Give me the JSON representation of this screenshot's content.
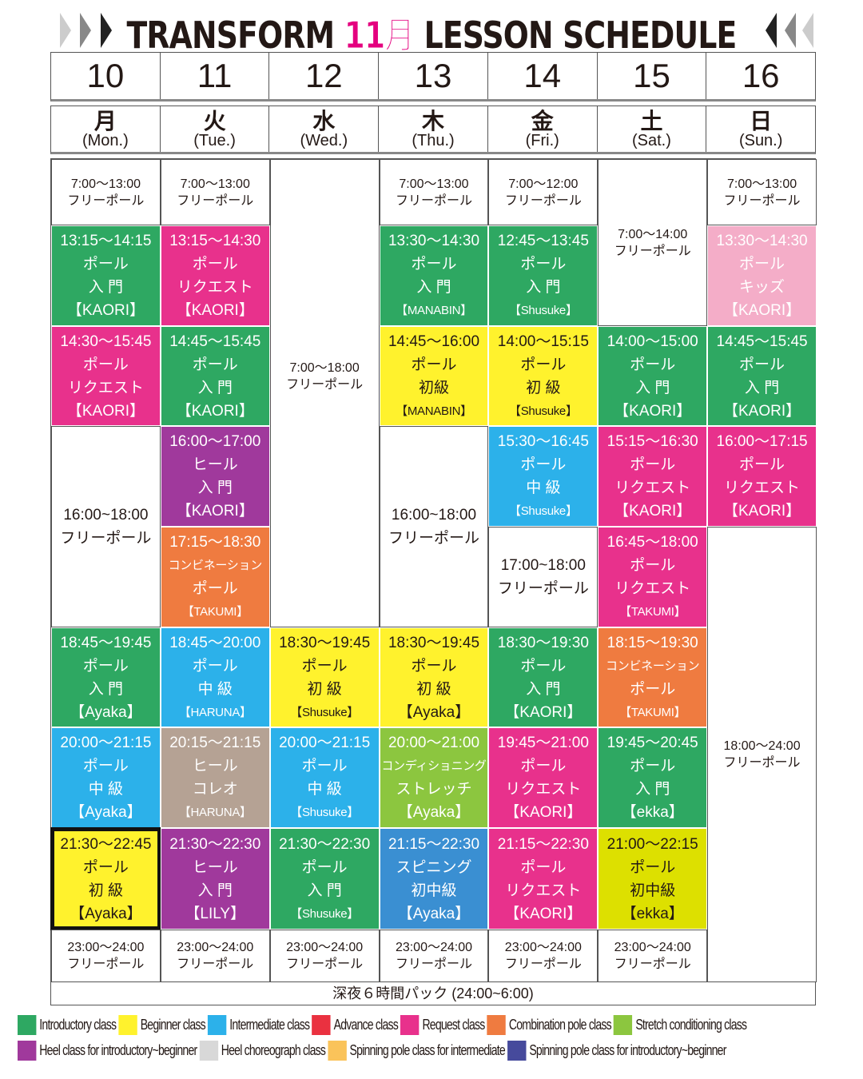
{
  "header": {
    "title_left": "TRANSFORM",
    "title_month": "11月",
    "title_right": "LESSON SCHEDULE"
  },
  "dates": [
    "10",
    "11",
    "12",
    "13",
    "14",
    "15",
    "16"
  ],
  "weekdays": [
    {
      "kanji": "月",
      "en": "(Mon.)"
    },
    {
      "kanji": "火",
      "en": "(Tue.)"
    },
    {
      "kanji": "水",
      "en": "(Wed.)"
    },
    {
      "kanji": "木",
      "en": "(Thu.)"
    },
    {
      "kanji": "金",
      "en": "(Fri.)"
    },
    {
      "kanji": "土",
      "en": "(Sat.)"
    },
    {
      "kanji": "日",
      "en": "(Sun.)"
    }
  ],
  "colors": {
    "green": "#2ea862",
    "yellow": "#fff22d",
    "cyan": "#2cb1ea",
    "red": "#ea3140",
    "pink": "#e8318c",
    "orange": "#ef7b40",
    "lime": "#8cc63f",
    "purple": "#a0399c",
    "taupe": "#b5a294",
    "gold": "#fac35a",
    "navy": "#464a9c",
    "lightpink": "#f4adc8",
    "yellowgreen": "#dde000",
    "blue": "#3a8fd2",
    "white": "#ffffff"
  },
  "columns": [
    {
      "cells": [
        {
          "type": "white",
          "lines": [
            "7:00〜13:00",
            "フリーポール"
          ]
        },
        {
          "type": "green",
          "lines": [
            "13:15〜14:15",
            "ポール",
            "入 門",
            "【KAORI】"
          ]
        },
        {
          "type": "pink",
          "lines": [
            "14:30〜15:45",
            "ポール",
            "リクエスト",
            "【KAORI】"
          ]
        },
        {
          "type": "white",
          "big": true,
          "lines": [
            "16:00~18:00",
            "フリーポール"
          ]
        },
        {
          "type": "green",
          "lines": [
            "18:45〜19:45",
            "ポール",
            "入 門",
            "【Ayaka】"
          ]
        },
        {
          "type": "cyan",
          "lines": [
            "20:00〜21:15",
            "ポール",
            "中 級",
            "【Ayaka】"
          ]
        },
        {
          "type": "yellow",
          "hl": true,
          "lines": [
            "21:30〜22:45",
            "ポール",
            "初 級",
            "【Ayaka】"
          ]
        },
        {
          "type": "white",
          "lines": [
            "23:00〜24:00",
            "フリーポール"
          ]
        }
      ]
    },
    {
      "cells": [
        {
          "type": "white",
          "lines": [
            "7:00〜13:00",
            "フリーポール"
          ]
        },
        {
          "type": "pink",
          "lines": [
            "13:15〜14:30",
            "ポール",
            "リクエスト",
            "【KAORI】"
          ]
        },
        {
          "type": "green",
          "lines": [
            "14:45〜15:45",
            "ポール",
            "入 門",
            "【KAORI】"
          ]
        },
        {
          "type": "purple",
          "lines": [
            "16:00〜17:00",
            "ヒール",
            "入 門",
            "【KAORI】"
          ]
        },
        {
          "type": "orange",
          "lines": [
            "17:15〜18:30",
            "コンビネーション",
            "ポール",
            "【TAKUMI】"
          ]
        },
        {
          "type": "cyan",
          "lines": [
            "18:45〜20:00",
            "ポール",
            "中 級",
            "【HARUNA】"
          ]
        },
        {
          "type": "taupe",
          "lines": [
            "20:15〜21:15",
            "ヒール",
            "コレオ",
            "【HARUNA】"
          ]
        },
        {
          "type": "purple",
          "lines": [
            "21:30〜22:30",
            "ヒール",
            "入 門",
            "【LILY】"
          ]
        },
        {
          "type": "white",
          "lines": [
            "23:00〜24:00",
            "フリーポール"
          ]
        }
      ]
    },
    {
      "cells": [
        {
          "type": "white",
          "lines": [
            "7:00〜18:00",
            "フリーポール"
          ]
        },
        {
          "type": "yellow",
          "lines": [
            "18:30〜19:45",
            "ポール",
            "初 級",
            "【Shusuke】"
          ]
        },
        {
          "type": "cyan",
          "lines": [
            "20:00〜21:15",
            "ポール",
            "中 級",
            "【Shusuke】"
          ]
        },
        {
          "type": "green",
          "lines": [
            "21:30〜22:30",
            "ポール",
            "入 門",
            "【Shusuke】"
          ]
        },
        {
          "type": "white",
          "lines": [
            "23:00〜24:00",
            "フリーポール"
          ]
        }
      ]
    },
    {
      "cells": [
        {
          "type": "white",
          "lines": [
            "7:00〜13:00",
            "フリーポール"
          ]
        },
        {
          "type": "green",
          "lines": [
            "13:30〜14:30",
            "ポール",
            "入 門",
            "【MANABIN】"
          ]
        },
        {
          "type": "yellow",
          "lines": [
            "14:45〜16:00",
            "ポール",
            "初級",
            "【MANABIN】"
          ]
        },
        {
          "type": "white",
          "big": true,
          "lines": [
            "16:00~18:00",
            "フリーポール"
          ]
        },
        {
          "type": "yellow",
          "lines": [
            "18:30〜19:45",
            "ポール",
            "初 級",
            "【Ayaka】"
          ]
        },
        {
          "type": "lime",
          "lines": [
            "20:00〜21:00",
            "コンディショニング",
            "ストレッチ",
            "【Ayaka】"
          ]
        },
        {
          "type": "blue",
          "lines": [
            "21:15〜22:30",
            "スピニング",
            "初中級",
            "【Ayaka】"
          ]
        },
        {
          "type": "white",
          "lines": [
            "23:00〜24:00",
            "フリーポール"
          ]
        }
      ]
    },
    {
      "cells": [
        {
          "type": "white",
          "lines": [
            "7:00〜12:00",
            "フリーポール"
          ]
        },
        {
          "type": "green",
          "lines": [
            "12:45〜13:45",
            "ポール",
            "入 門",
            "【Shusuke】"
          ]
        },
        {
          "type": "yellow",
          "lines": [
            "14:00〜15:15",
            "ポール",
            "初 級",
            "【Shusuke】"
          ]
        },
        {
          "type": "cyan",
          "lines": [
            "15:30〜16:45",
            "ポール",
            "中 級",
            "【Shusuke】"
          ]
        },
        {
          "type": "white",
          "big": true,
          "lines": [
            "17:00~18:00",
            "フリーポール"
          ]
        },
        {
          "type": "green",
          "lines": [
            "18:30〜19:30",
            "ポール",
            "入 門",
            "【KAORI】"
          ]
        },
        {
          "type": "pink",
          "lines": [
            "19:45〜21:00",
            "ポール",
            "リクエスト",
            "【KAORI】"
          ]
        },
        {
          "type": "pink",
          "lines": [
            "21:15〜22:30",
            "ポール",
            "リクエスト",
            "【KAORI】"
          ]
        },
        {
          "type": "white",
          "lines": [
            "23:00〜24:00",
            "フリーポール"
          ]
        }
      ]
    },
    {
      "cells": [
        {
          "type": "white",
          "lines": [
            "7:00〜14:00",
            "フリーポール"
          ]
        },
        {
          "type": "green",
          "lines": [
            "14:00〜15:00",
            "ポール",
            "入 門",
            "【KAORI】"
          ]
        },
        {
          "type": "pink",
          "lines": [
            "15:15〜16:30",
            "ポール",
            "リクエスト",
            "【KAORI】"
          ]
        },
        {
          "type": "pink",
          "lines": [
            "16:45〜18:00",
            "ポール",
            "リクエスト",
            "【TAKUMI】"
          ]
        },
        {
          "type": "orange",
          "lines": [
            "18:15〜19:30",
            "コンビネーション",
            "ポール",
            "【TAKUMI】"
          ]
        },
        {
          "type": "green",
          "lines": [
            "19:45〜20:45",
            "ポール",
            "入 門",
            "【ekka】"
          ]
        },
        {
          "type": "yellowgreen",
          "dark": true,
          "lines": [
            "21:00〜22:15",
            "ポール",
            "初中級",
            "【ekka】"
          ]
        },
        {
          "type": "white",
          "lines": [
            "23:00〜24:00",
            "フリーポール"
          ]
        }
      ]
    },
    {
      "cells": [
        {
          "type": "white",
          "lines": [
            "7:00〜13:00",
            "フリーポール"
          ]
        },
        {
          "type": "lightpink",
          "lines": [
            "13:30〜14:30",
            "ポール",
            "キッズ",
            "【KAORI】"
          ]
        },
        {
          "type": "green",
          "lines": [
            "14:45〜15:45",
            "ポール",
            "入 門",
            "【KAORI】"
          ]
        },
        {
          "type": "pink",
          "lines": [
            "16:00〜17:15",
            "ポール",
            "リクエスト",
            "【KAORI】"
          ]
        },
        {
          "type": "white",
          "lines": [
            "18:00〜24:00",
            "フリーポール"
          ]
        }
      ]
    }
  ],
  "footer": "深夜６時間パック (24:00~6:00)",
  "legend": [
    [
      {
        "color": "green",
        "label": "Introductory class"
      },
      {
        "color": "yellow",
        "label": "Beginner class"
      },
      {
        "color": "cyan",
        "label": "Intermediate class"
      },
      {
        "color": "red",
        "label": "Advance class"
      },
      {
        "color": "pink",
        "label": "Request class"
      },
      {
        "color": "orange",
        "label": "Combination pole class"
      },
      {
        "color": "lime",
        "label": "Stretch conditioning class"
      }
    ],
    [
      {
        "color": "purple",
        "label": "Heel class for introductory~beginner"
      },
      {
        "color": "lightgray",
        "label": "Heel choreograph class"
      },
      {
        "color": "gold",
        "label": "Spinning pole class for intermediate"
      },
      {
        "color": "navy",
        "label": "Spinning pole class for introductory~beginner"
      }
    ]
  ]
}
